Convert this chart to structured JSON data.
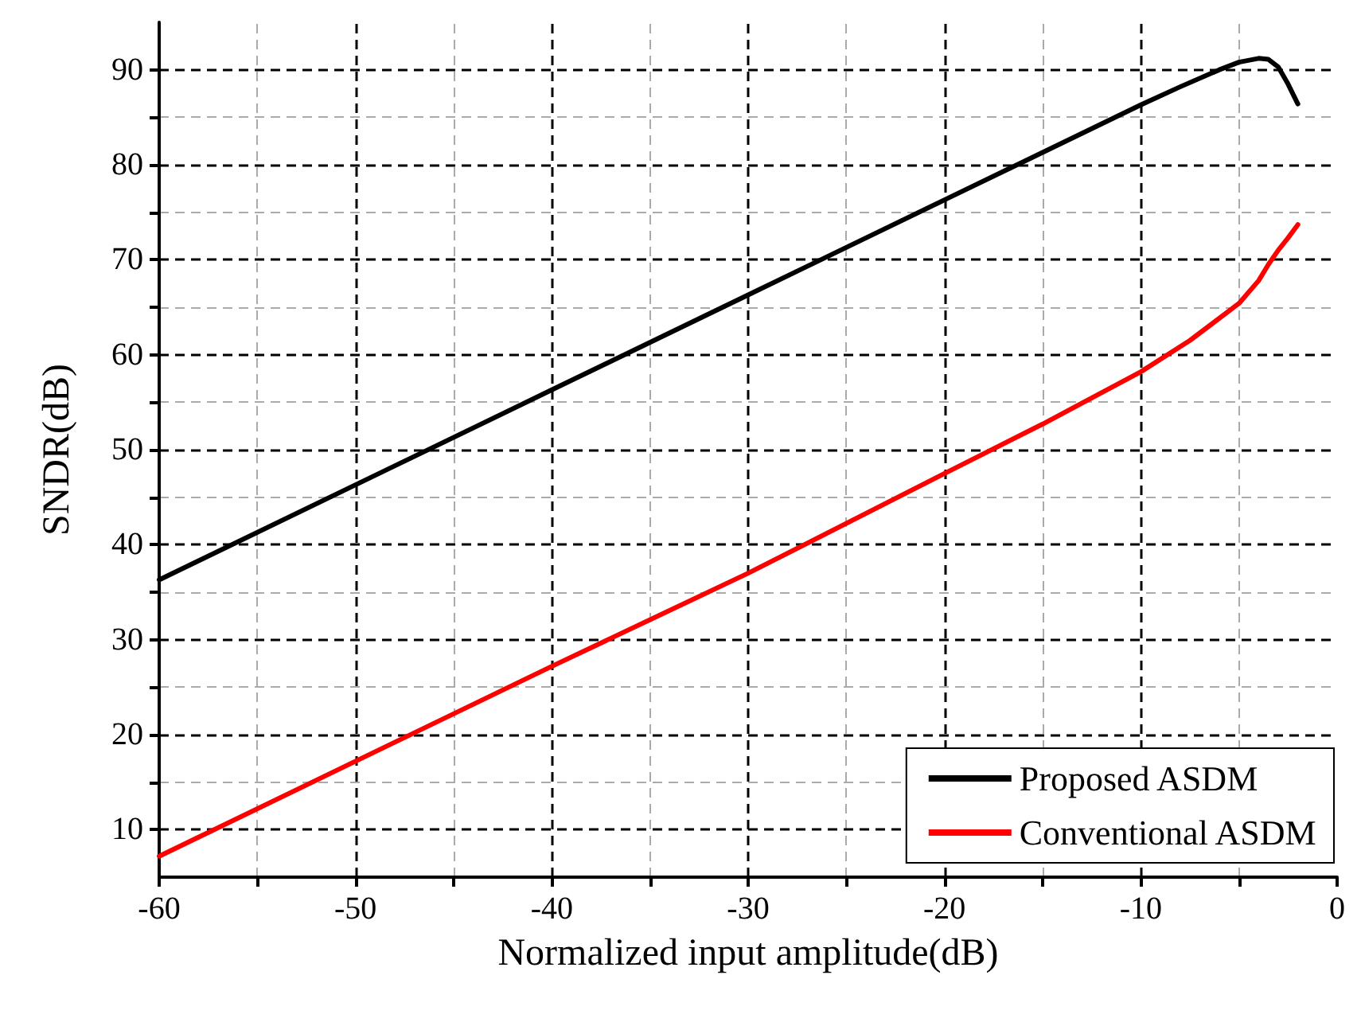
{
  "chart_data": {
    "type": "line",
    "xlabel": "Normalized input amplitude(dB)",
    "ylabel": "SNDR(dB)",
    "xlim": [
      -60,
      0
    ],
    "ylim": [
      5,
      95
    ],
    "xticks": [
      -60,
      {
        "value": -55,
        "label": null
      },
      -50,
      {
        "value": -45,
        "label": null
      },
      -40,
      {
        "value": -35,
        "label": null
      },
      -30,
      {
        "value": -25,
        "label": null
      },
      -20,
      {
        "value": -15,
        "label": null
      },
      -10,
      {
        "value": -5,
        "label": null
      },
      0
    ],
    "yticks": [
      10,
      {
        "value": 15,
        "label": null
      },
      20,
      {
        "value": 25,
        "label": null
      },
      30,
      {
        "value": 35,
        "label": null
      },
      40,
      {
        "value": 45,
        "label": null
      },
      50,
      {
        "value": 55,
        "label": null
      },
      60,
      {
        "value": 65,
        "label": null
      },
      70,
      {
        "value": 75,
        "label": null
      },
      80,
      {
        "value": 85,
        "label": null
      },
      90
    ],
    "grid": true,
    "legend": "bottom right",
    "marker": "none",
    "line_style": "solid",
    "series": [
      {
        "name": "Proposed ASDM",
        "color": "#000000",
        "x": [
          -60,
          -50,
          -40,
          -30,
          -20,
          -10,
          -8,
          -6,
          -5,
          -4,
          -3.5,
          -3,
          -2.5,
          -2
        ],
        "values": [
          36.3,
          46.3,
          56.3,
          66.3,
          76.3,
          86.3,
          88.2,
          90.0,
          90.8,
          91.2,
          91.1,
          90.3,
          88.5,
          86.4
        ]
      },
      {
        "name": "Conventional ASDM",
        "color": "#ff0000",
        "x": [
          -60,
          -50,
          -40,
          -30,
          -20,
          -15,
          -10,
          -7.5,
          -5,
          -4,
          -3.5,
          -3,
          -2.5,
          -2
        ],
        "values": [
          7.2,
          17.2,
          27.2,
          37.0,
          47.5,
          52.7,
          58.2,
          61.5,
          65.4,
          67.8,
          69.5,
          71.0,
          72.3,
          73.7
        ]
      }
    ]
  }
}
